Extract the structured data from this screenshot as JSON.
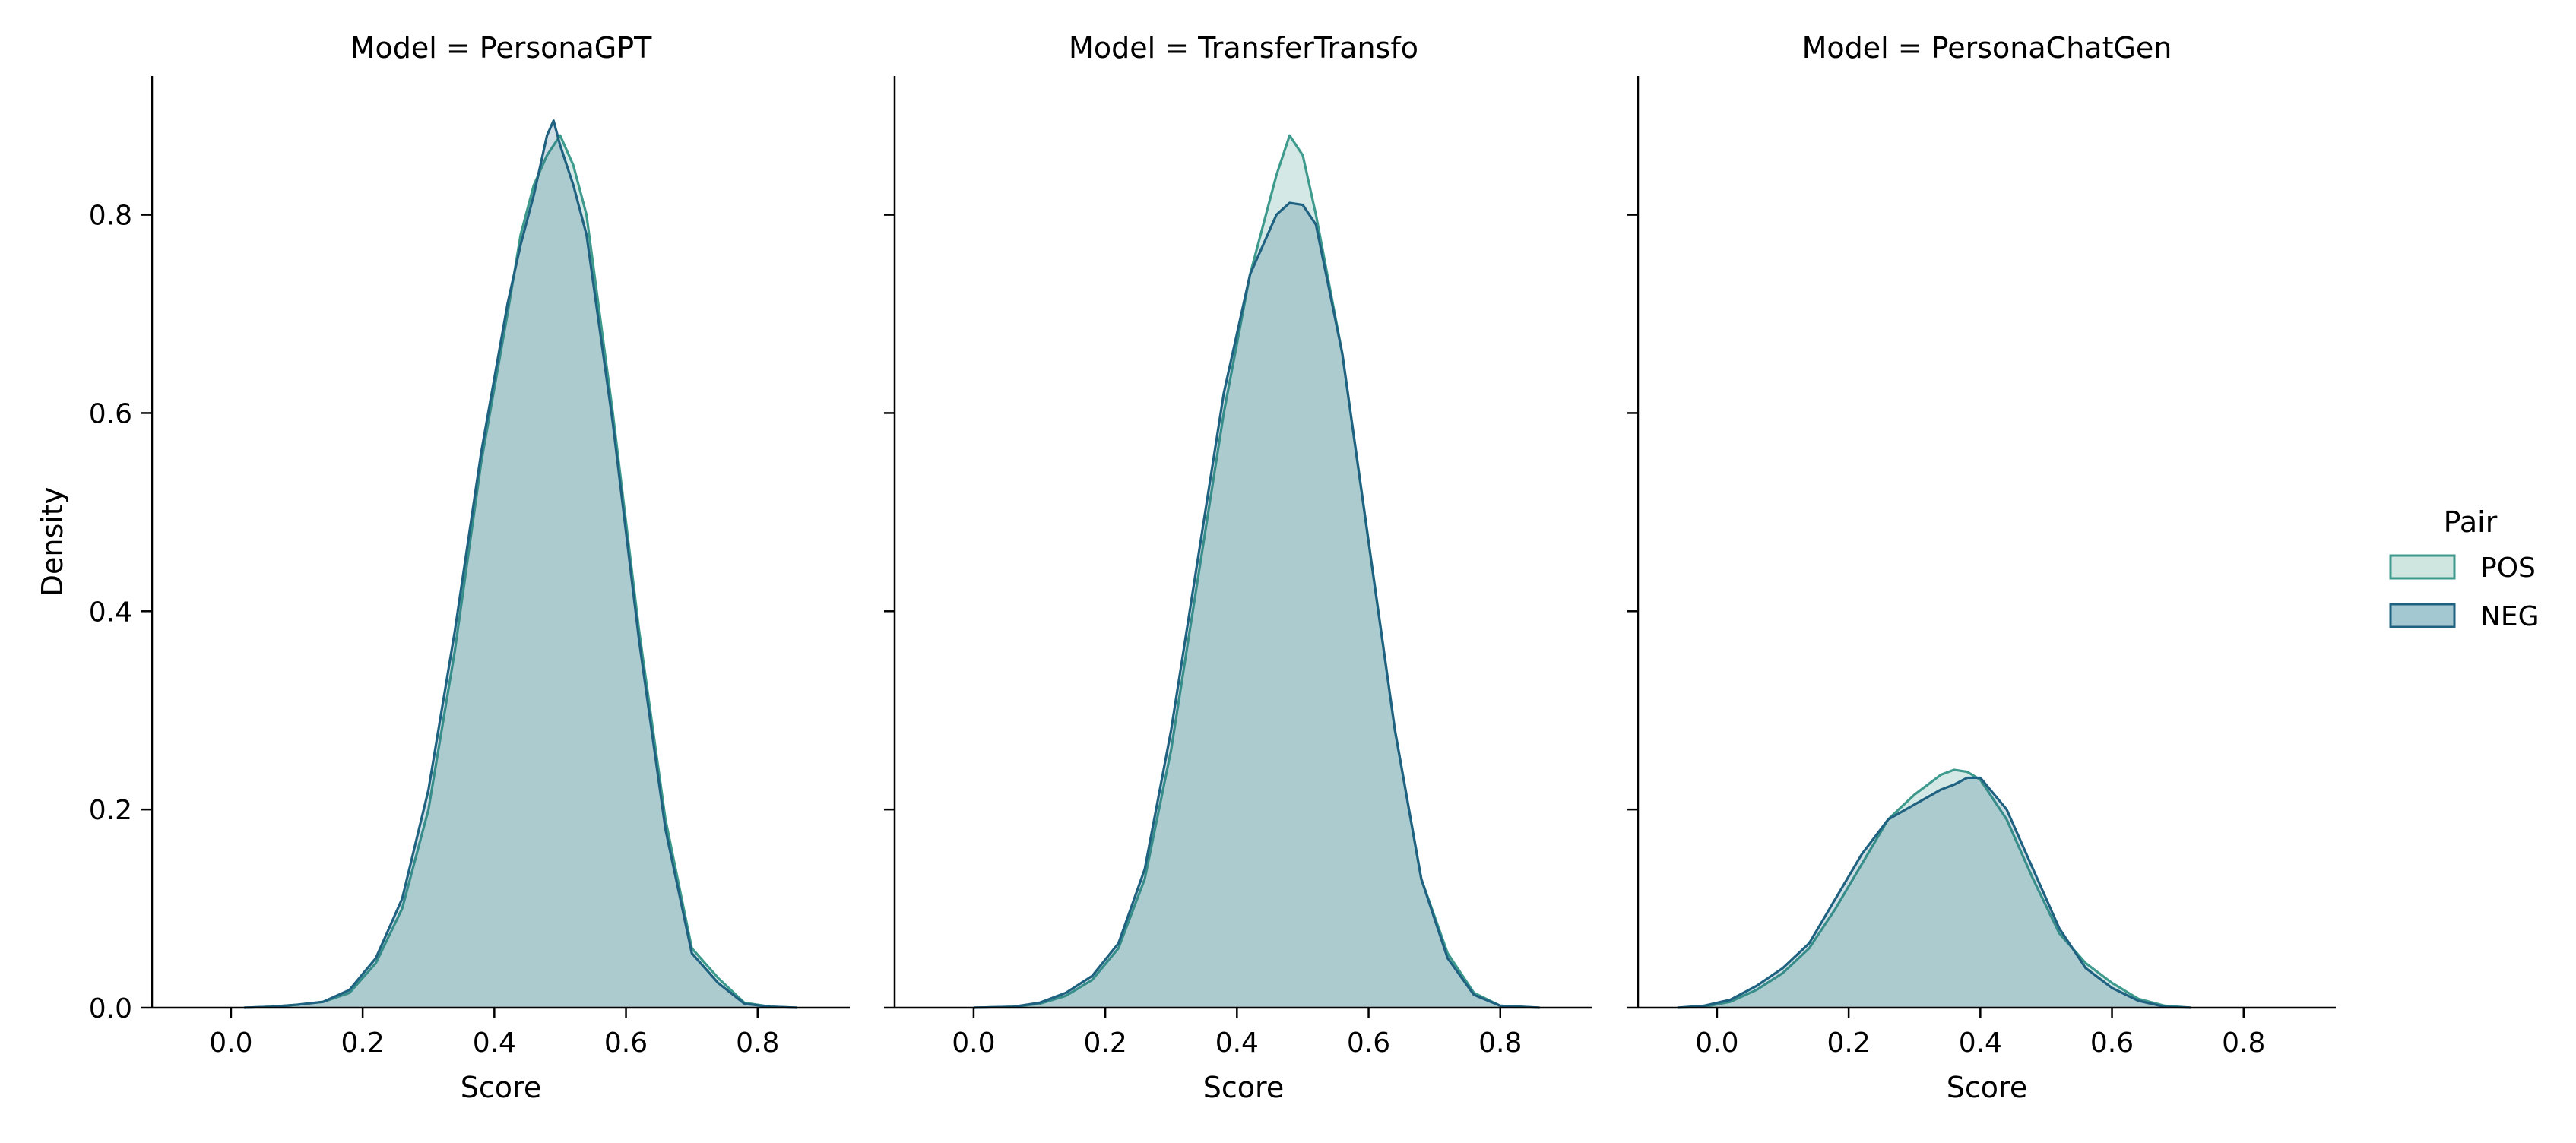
{
  "chart_data": [
    {
      "type": "area",
      "title": "Model = PersonaGPT",
      "xlabel": "Score",
      "ylabel": "Density",
      "xlim": [
        -0.12,
        0.94
      ],
      "ylim": [
        0,
        0.94
      ],
      "xticks": [
        0.0,
        0.2,
        0.4,
        0.6,
        0.8
      ],
      "xtick_labels": [
        "0.0",
        "0.2",
        "0.4",
        "0.6",
        "0.8"
      ],
      "yticks": [
        0.0,
        0.2,
        0.4,
        0.6,
        0.8
      ],
      "ytick_labels": [
        "0.0",
        "0.2",
        "0.4",
        "0.6",
        "0.8"
      ],
      "grid": false,
      "x": [
        0.02,
        0.06,
        0.1,
        0.14,
        0.18,
        0.22,
        0.26,
        0.3,
        0.34,
        0.38,
        0.42,
        0.44,
        0.46,
        0.48,
        0.49,
        0.5,
        0.52,
        0.54,
        0.58,
        0.62,
        0.66,
        0.7,
        0.74,
        0.78,
        0.82,
        0.86
      ],
      "series": [
        {
          "name": "POS",
          "values": [
            0.0,
            0.001,
            0.003,
            0.006,
            0.015,
            0.045,
            0.1,
            0.2,
            0.36,
            0.55,
            0.7,
            0.78,
            0.83,
            0.86,
            0.87,
            0.88,
            0.85,
            0.8,
            0.6,
            0.38,
            0.19,
            0.06,
            0.03,
            0.005,
            0.001,
            0.0
          ]
        },
        {
          "name": "NEG",
          "values": [
            0.0,
            0.001,
            0.003,
            0.006,
            0.018,
            0.05,
            0.11,
            0.22,
            0.38,
            0.56,
            0.71,
            0.77,
            0.82,
            0.88,
            0.895,
            0.87,
            0.83,
            0.78,
            0.59,
            0.37,
            0.18,
            0.055,
            0.025,
            0.004,
            0.001,
            0.0
          ]
        }
      ]
    },
    {
      "type": "area",
      "title": "Model = TransferTransfo",
      "xlabel": "Score",
      "ylabel": "",
      "xlim": [
        -0.12,
        0.94
      ],
      "ylim": [
        0,
        0.94
      ],
      "xticks": [
        0.0,
        0.2,
        0.4,
        0.6,
        0.8
      ],
      "xtick_labels": [
        "0.0",
        "0.2",
        "0.4",
        "0.6",
        "0.8"
      ],
      "yticks": [
        0.0,
        0.2,
        0.4,
        0.6,
        0.8
      ],
      "ytick_labels": [
        "",
        "",
        "",
        "",
        ""
      ],
      "grid": false,
      "x": [
        0.0,
        0.06,
        0.1,
        0.14,
        0.18,
        0.22,
        0.26,
        0.3,
        0.34,
        0.38,
        0.42,
        0.46,
        0.48,
        0.5,
        0.52,
        0.56,
        0.6,
        0.64,
        0.68,
        0.72,
        0.76,
        0.8,
        0.86
      ],
      "series": [
        {
          "name": "POS",
          "values": [
            0.0,
            0.001,
            0.004,
            0.012,
            0.028,
            0.06,
            0.13,
            0.26,
            0.43,
            0.6,
            0.74,
            0.84,
            0.88,
            0.86,
            0.8,
            0.66,
            0.47,
            0.28,
            0.13,
            0.055,
            0.015,
            0.002,
            0.0
          ]
        },
        {
          "name": "NEG",
          "values": [
            0.0,
            0.001,
            0.005,
            0.015,
            0.032,
            0.065,
            0.14,
            0.28,
            0.45,
            0.62,
            0.74,
            0.8,
            0.812,
            0.81,
            0.79,
            0.66,
            0.47,
            0.28,
            0.13,
            0.05,
            0.013,
            0.002,
            0.0
          ]
        }
      ]
    },
    {
      "type": "area",
      "title": "Model = PersonaChatGen",
      "xlabel": "Score",
      "ylabel": "",
      "xlim": [
        -0.12,
        0.94
      ],
      "ylim": [
        0,
        0.94
      ],
      "xticks": [
        0.0,
        0.2,
        0.4,
        0.6,
        0.8
      ],
      "xtick_labels": [
        "0.0",
        "0.2",
        "0.4",
        "0.6",
        "0.8"
      ],
      "yticks": [
        0.0,
        0.2,
        0.4,
        0.6,
        0.8
      ],
      "ytick_labels": [
        "",
        "",
        "",
        "",
        ""
      ],
      "grid": false,
      "x": [
        -0.06,
        -0.02,
        0.02,
        0.06,
        0.1,
        0.14,
        0.18,
        0.22,
        0.26,
        0.3,
        0.34,
        0.36,
        0.38,
        0.4,
        0.44,
        0.48,
        0.52,
        0.56,
        0.6,
        0.64,
        0.68,
        0.72
      ],
      "series": [
        {
          "name": "POS",
          "values": [
            0.0,
            0.001,
            0.006,
            0.018,
            0.035,
            0.06,
            0.1,
            0.145,
            0.19,
            0.215,
            0.235,
            0.24,
            0.238,
            0.23,
            0.19,
            0.13,
            0.075,
            0.045,
            0.025,
            0.009,
            0.002,
            0.0
          ]
        },
        {
          "name": "NEG",
          "values": [
            0.0,
            0.002,
            0.008,
            0.022,
            0.04,
            0.065,
            0.11,
            0.155,
            0.19,
            0.205,
            0.22,
            0.225,
            0.232,
            0.232,
            0.2,
            0.14,
            0.08,
            0.04,
            0.02,
            0.007,
            0.001,
            0.0
          ]
        }
      ]
    }
  ],
  "legend": {
    "title": "Pair",
    "placement": "right",
    "entries": [
      {
        "label": "POS",
        "fill": "#cfe5e0",
        "stroke": "#3d9a8c"
      },
      {
        "label": "NEG",
        "fill": "#a4c8d1",
        "stroke": "#1f6180"
      }
    ]
  },
  "colors": {
    "pos_stroke": "#3d9a8c",
    "pos_fill": "#3d9a8c",
    "neg_stroke": "#1f6180",
    "neg_fill": "#1f6180",
    "axis": "#000000"
  }
}
